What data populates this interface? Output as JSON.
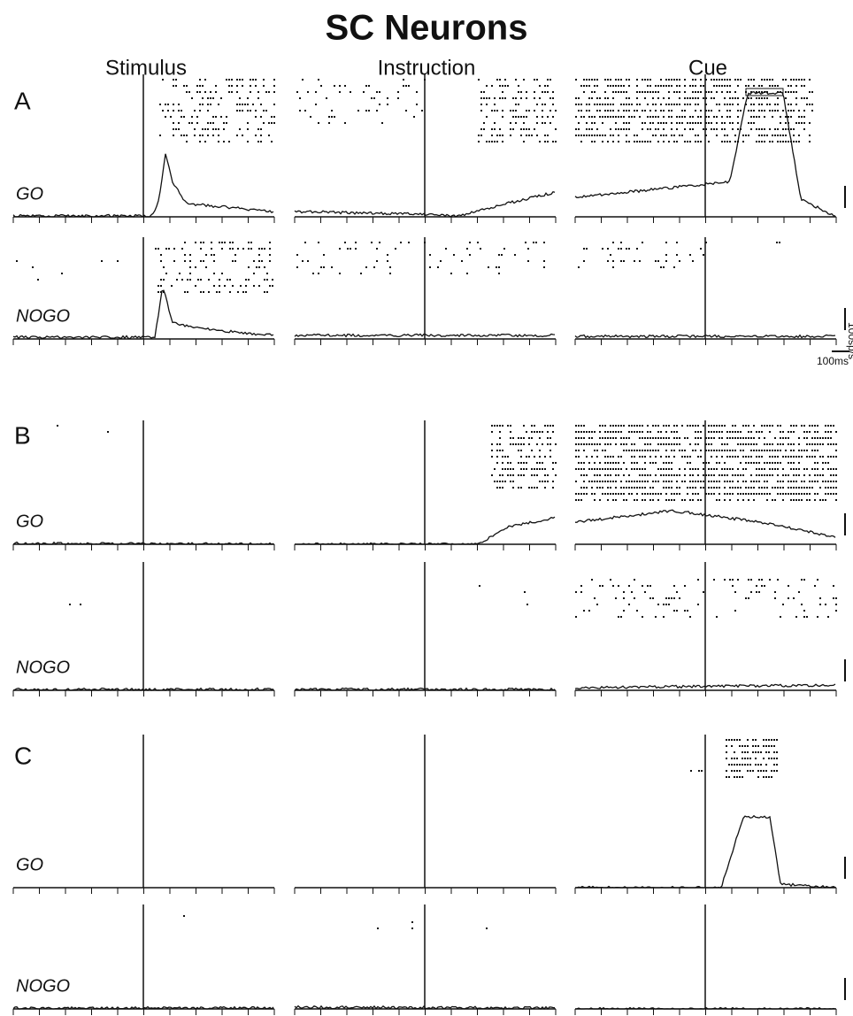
{
  "title": "SC Neurons",
  "column_headers": [
    "Stimulus",
    "Instruction",
    "Cue"
  ],
  "sections": [
    {
      "label": "A",
      "rows": [
        {
          "condition": "GO"
        },
        {
          "condition": "NOGO"
        }
      ]
    },
    {
      "label": "B",
      "rows": [
        {
          "condition": "GO"
        },
        {
          "condition": "NOGO"
        }
      ]
    },
    {
      "label": "C",
      "rows": [
        {
          "condition": "GO"
        },
        {
          "condition": "NOGO"
        }
      ]
    }
  ],
  "scale": {
    "rate": "100sp/s",
    "time": "100ms"
  }
}
